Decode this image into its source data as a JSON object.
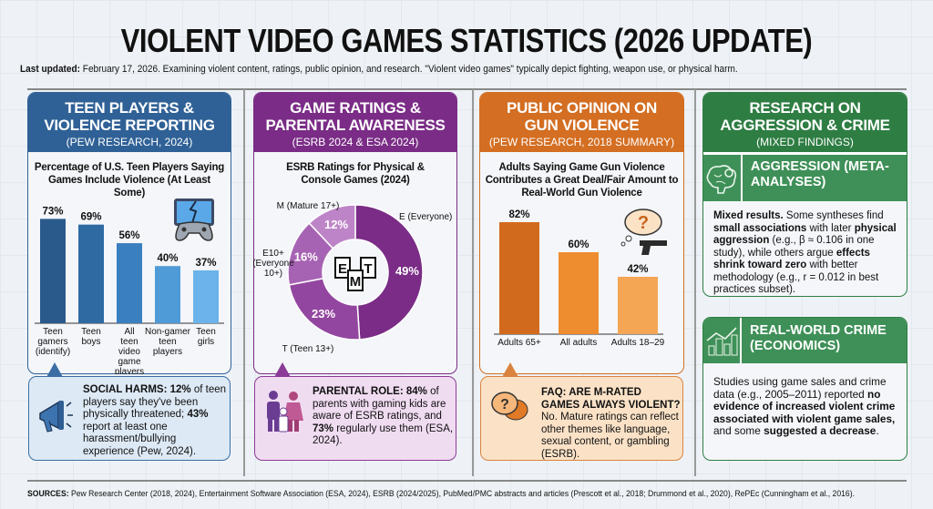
{
  "header": {
    "title": "VIOLENT VIDEO GAMES STATISTICS (2026 UPDATE)",
    "subtitle": [
      {
        "t": "Last updated:",
        "b": true
      },
      {
        "t": " February 17, 2026. Examining violent content, ratings, public opinion, and research. \"Violent video games\" typically depict fighting, weapon use, or physical harm."
      }
    ]
  },
  "colors": {
    "blue": "#2f6196",
    "purple": "#7a2c86",
    "orange": "#d36e22",
    "green": "#2e7d43"
  },
  "col1": {
    "title": "TEEN PLAYERS & VIOLENCE REPORTING",
    "source": "(PEW RESEARCH, 2024)",
    "icon": "broken-screen-gamepad-icon",
    "callout": [
      {
        "t": "SOCIAL HARMS: 12%",
        "b": true
      },
      {
        "t": " of teen players say they've been physically threatened; "
      },
      {
        "t": "43%",
        "b": true
      },
      {
        "t": " report at least one harassment/bullying experience (Pew, 2024)."
      }
    ],
    "callout_icon": "megaphone-icon"
  },
  "col2": {
    "title": "GAME RATINGS & PARENTAL AWARENESS",
    "source": "(ESRB 2024 & ESA 2024)",
    "icon": "esrb-rating-badges-icon",
    "callout": [
      {
        "t": "PARENTAL ROLE: 84%",
        "b": true
      },
      {
        "t": " of parents with gaming kids are aware of ESRB ratings, and "
      },
      {
        "t": "73%",
        "b": true
      },
      {
        "t": " regularly use them (ESA, 2024)."
      }
    ],
    "callout_icon": "family-icon"
  },
  "col3": {
    "title": "PUBLIC OPINION ON GUN VIOLENCE",
    "source": "(PEW RESEARCH, 2018 SUMMARY)",
    "icon": "thought-bubble-gun-icon",
    "callout": [
      {
        "t": "FAQ: ARE M-RATED GAMES ALWAYS VIOLENT?",
        "b": true
      },
      {
        "t": " No. Mature ratings can reflect other themes like language, sexual content, or gambling (ESRB)."
      }
    ],
    "callout_icon": "question-chat-icon"
  },
  "col4": {
    "title": "RESEARCH ON AGGRESSION & CRIME",
    "source": "(MIXED FINDINGS)",
    "aggression": {
      "title": "AGGRESSION (META-ANALYSES)",
      "icon": "brain-gear-icon",
      "text": [
        {
          "t": "Mixed results.",
          "b": true
        },
        {
          "t": " Some syntheses find "
        },
        {
          "t": "small associations",
          "b": true
        },
        {
          "t": " with later "
        },
        {
          "t": "physical aggression",
          "b": true
        },
        {
          "t": " (e.g., β ≈ 0.106 in one study), while others argue "
        },
        {
          "t": "effects shrink toward zero",
          "b": true
        },
        {
          "t": " with better methodology (e.g., r = 0.012 in best practices subset)."
        }
      ]
    },
    "crime": {
      "title": "REAL-WORLD CRIME (ECONOMICS)",
      "icon": "city-chart-icon",
      "text": [
        {
          "t": "Studies using game sales and crime data (e.g., 2005–2011) reported "
        },
        {
          "t": "no evidence of increased violent crime associated with violent game sales,",
          "b": true
        },
        {
          "t": " and some "
        },
        {
          "t": "suggested a decrease",
          "b": true
        },
        {
          "t": "."
        }
      ]
    }
  },
  "footer": [
    {
      "t": "SOURCES:",
      "b": true
    },
    {
      "t": " Pew Research Center (2018, 2024), Entertainment Software Association (ESA, 2024), ESRB (2024/2025), PubMed/PMC abstracts and articles (Prescott et al., 2018; Drummond et al., 2020), RePEc (Cunningham et al., 2016)."
    }
  ],
  "chart_data": [
    {
      "type": "bar",
      "title": "Percentage of U.S. Teen Players Saying Games Include Violence (At Least Some)",
      "categories": [
        "Teen gamers (identify)",
        "Teen boys",
        "All teen video game players",
        "Non-gamer teen players",
        "Teen girls"
      ],
      "values": [
        73,
        69,
        56,
        40,
        37
      ],
      "labels": [
        "73%",
        "69%",
        "56%",
        "40%",
        "37%"
      ],
      "colors": [
        "#2a5a8c",
        "#2f6aa3",
        "#3a7fc0",
        "#4f9bd8",
        "#6bb3ea"
      ],
      "ylim": [
        0,
        100
      ]
    },
    {
      "type": "pie",
      "title": "ESRB Ratings for Physical & Console Games (2024)",
      "categories": [
        "E (Everyone)",
        "T (Teen 13+)",
        "E10+ (Everyone 10+)",
        "M (Mature 17+)"
      ],
      "values": [
        49,
        23,
        16,
        12
      ],
      "labels": [
        "49%",
        "23%",
        "16%",
        "12%"
      ],
      "colors": [
        "#7a2c86",
        "#9346a0",
        "#a763b3",
        "#bd85c7"
      ],
      "donut": true
    },
    {
      "type": "bar",
      "title": "Adults Saying Game Gun Violence Contributes a Great Deal/Fair Amount to Real-World Gun Violence",
      "categories": [
        "Adults 65+",
        "All adults",
        "Adults 18–29"
      ],
      "values": [
        82,
        60,
        42
      ],
      "labels": [
        "82%",
        "60%",
        "42%"
      ],
      "colors": [
        "#d26a1e",
        "#ee8c30",
        "#f4a655"
      ],
      "ylim": [
        0,
        100
      ]
    }
  ]
}
